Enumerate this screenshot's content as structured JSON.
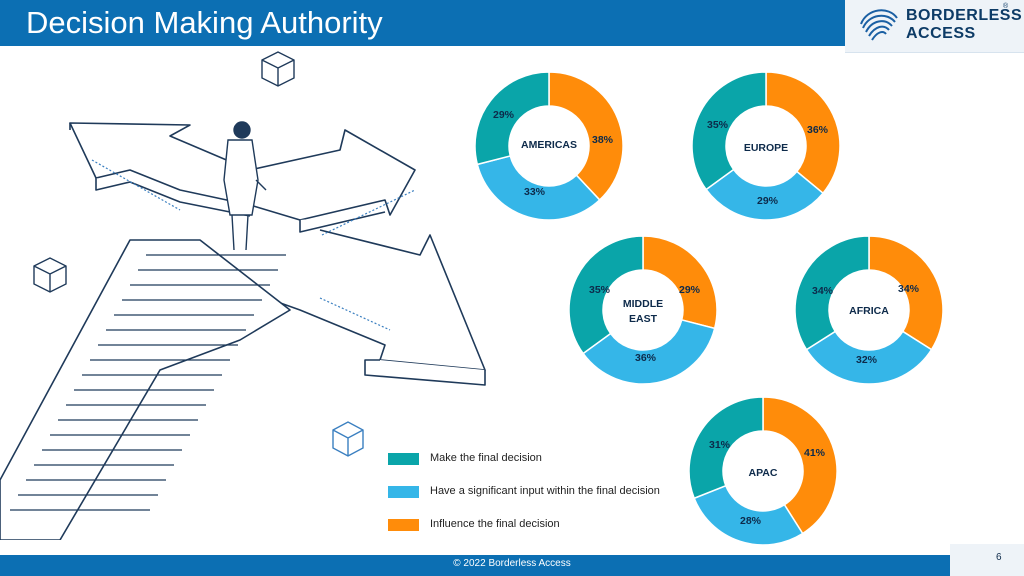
{
  "header": {
    "title": "Decision Making Authority"
  },
  "logo": {
    "line1": "BORDERLESS",
    "line2": "ACCESS",
    "reg": "®"
  },
  "colors": {
    "teal": "#0aa5a9",
    "lightblue": "#35b6e8",
    "orange": "#ff8c0a",
    "header_blue": "#0c6fb3"
  },
  "chart_data": {
    "type": "pie",
    "variant": "donut",
    "categories": [
      "Make the final decision",
      "Have a significant input within the final decision",
      "Influence the final decision"
    ],
    "charts": [
      {
        "region": "AMERICAS",
        "values": [
          29,
          33,
          38
        ]
      },
      {
        "region": "EUROPE",
        "values": [
          35,
          29,
          36
        ]
      },
      {
        "region": "MIDDLE EAST",
        "values": [
          35,
          36,
          29
        ]
      },
      {
        "region": "AFRICA",
        "values": [
          34,
          32,
          34
        ]
      },
      {
        "region": "APAC",
        "values": [
          31,
          28,
          41
        ]
      }
    ]
  },
  "labels": {
    "americas": {
      "region": "AMERICAS",
      "teal": "29%",
      "blue": "33%",
      "orange": "38%"
    },
    "europe": {
      "region": "EUROPE",
      "teal": "35%",
      "blue": "29%",
      "orange": "36%"
    },
    "middle_east": {
      "region_line1": "MIDDLE",
      "region_line2": "EAST",
      "teal": "35%",
      "blue": "36%",
      "orange": "29%"
    },
    "africa": {
      "region": "AFRICA",
      "teal": "34%",
      "blue": "32%",
      "orange": "34%"
    },
    "apac": {
      "region": "APAC",
      "teal": "31%",
      "blue": "28%",
      "orange": "41%"
    }
  },
  "legend": [
    {
      "label": "Make the final decision"
    },
    {
      "label": "Have a significant input within the final decision"
    },
    {
      "label": "Influence the final decision"
    }
  ],
  "footer": {
    "text": "© 2022 Borderless Access",
    "page": "6"
  }
}
